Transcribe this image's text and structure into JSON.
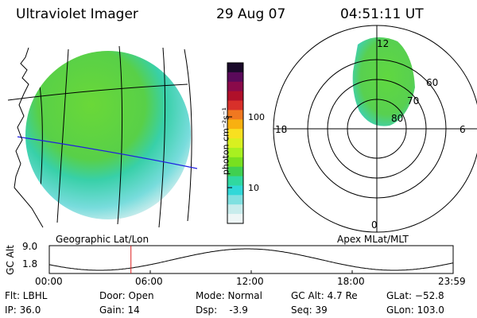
{
  "header": {
    "instrument": "Ultraviolet Imager",
    "date": "29 Aug 07",
    "time": "04:51:11 UT"
  },
  "colorbar": {
    "unit_label": "photon cm⁻²s⁻¹",
    "ticks": [
      "100",
      "10"
    ],
    "colors": [
      "#1a0a2a",
      "#5a0a5a",
      "#8a0a4a",
      "#b0102a",
      "#d8302a",
      "#f07820",
      "#f8b010",
      "#f8e020",
      "#d8f020",
      "#a8f020",
      "#78e020",
      "#40d050",
      "#30d8a0",
      "#30d8d8",
      "#80e0e0",
      "#c8ecec",
      "#eef6f6"
    ]
  },
  "geo_panel": {
    "label": "Geographic Lat/Lon"
  },
  "polar_panel": {
    "label": "Apex MLat/MLT",
    "mlt_labels": {
      "top": "12",
      "left": "18",
      "right": "6",
      "bottom": "0"
    },
    "lat_labels": [
      "60",
      "70",
      "80"
    ]
  },
  "altitude_plot": {
    "ylabel": "GC Alt",
    "yticks": [
      "9.0",
      "1.8"
    ],
    "xticks": [
      "00:00",
      "06:00",
      "12:00",
      "18:00",
      "23:59"
    ],
    "current_time_hours": 4.853,
    "marker_color": "#dd2020"
  },
  "info": {
    "flt": "Flt: LBHL",
    "ip": "IP: 36.0",
    "door": "Door: Open",
    "gain": "Gain: 14",
    "mode": "Mode: Normal",
    "dsp": "Dsp:    -3.9",
    "gcalt": "GC Alt: 4.7 Re",
    "seq": "Seq: 39",
    "glat": "GLat: −52.8",
    "glon": "GLon: 103.0"
  }
}
